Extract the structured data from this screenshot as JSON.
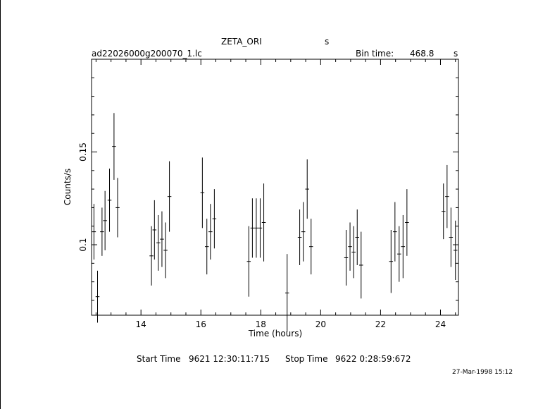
{
  "header": {
    "object": "ZETA_ORI",
    "object_unit": "s",
    "filename": "ad22026000g200070_1.lc",
    "bin_label": "Bin time:",
    "bin_value": "468.8",
    "bin_unit": "s"
  },
  "footer": {
    "start_label": "Start Time",
    "start_value": "9621 12:30:11:715",
    "stop_label": "Stop Time",
    "stop_value": "9622  0:28:59:672",
    "date_stamp": "27-Mar-1998 15:12"
  },
  "chart_data": {
    "type": "scatter",
    "title": "ZETA_ORI",
    "xlabel": "Time (hours)",
    "ylabel": "Counts/s",
    "xlim": [
      12.35,
      24.6
    ],
    "ylim": [
      0.062,
      0.2
    ],
    "x_ticks": [
      14,
      16,
      18,
      20,
      22,
      24
    ],
    "y_ticks": [
      0.1,
      0.15
    ],
    "series": [
      {
        "x": [
          12.43,
          12.55,
          12.7,
          12.8,
          12.95,
          13.1,
          13.22,
          14.35,
          14.45,
          14.58,
          14.7,
          14.82,
          14.95,
          16.05,
          16.2,
          16.32,
          16.45,
          17.6,
          17.72,
          17.85,
          17.98,
          18.1,
          18.88,
          19.3,
          19.42,
          19.55,
          19.68,
          20.85,
          20.98,
          21.1,
          21.22,
          21.35,
          22.35,
          22.48,
          22.62,
          22.75,
          22.88,
          24.1,
          24.22,
          24.35,
          24.5
        ],
        "y": [
          0.107,
          0.072,
          0.107,
          0.113,
          0.124,
          0.153,
          0.12,
          0.094,
          0.108,
          0.101,
          0.103,
          0.097,
          0.126,
          0.128,
          0.099,
          0.107,
          0.114,
          0.091,
          0.109,
          0.109,
          0.109,
          0.112,
          0.074,
          0.104,
          0.107,
          0.13,
          0.099,
          0.093,
          0.099,
          0.096,
          0.104,
          0.089,
          0.091,
          0.107,
          0.095,
          0.099,
          0.112,
          0.118,
          0.126,
          0.104,
          0.097
        ],
        "yerr": [
          0.015,
          0.014,
          0.013,
          0.016,
          0.017,
          0.018,
          0.016,
          0.016,
          0.016,
          0.015,
          0.015,
          0.015,
          0.019,
          0.019,
          0.015,
          0.015,
          0.016,
          0.019,
          0.016,
          0.016,
          0.016,
          0.021,
          0.021,
          0.015,
          0.016,
          0.016,
          0.015,
          0.015,
          0.013,
          0.014,
          0.015,
          0.018,
          0.017,
          0.016,
          0.015,
          0.017,
          0.018,
          0.015,
          0.017,
          0.016,
          0.016
        ]
      }
    ]
  }
}
